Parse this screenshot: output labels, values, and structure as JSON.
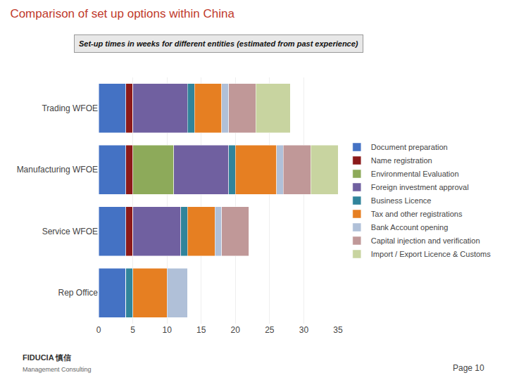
{
  "chart_data": {
    "type": "bar",
    "orientation": "horizontal",
    "stacked": true,
    "title": "Comparison of set up options within China",
    "subtitle": "Set-up times in weeks for different entities (estimated from past experience)",
    "annotations": [
      "Page 10",
      "FIDUCIA 慎信",
      "Management Consulting"
    ],
    "categories": [
      "Trading WFOE",
      "Manufacturing WFOE",
      "Service WFOE",
      "Rep Office"
    ],
    "series": [
      {
        "name": "Document preparation",
        "color": "#4472C4",
        "values": [
          4,
          4,
          4,
          4
        ]
      },
      {
        "name": "Name registration",
        "color": "#8B1A1A",
        "values": [
          1,
          1,
          1,
          0
        ]
      },
      {
        "name": "Environmental Evaluation",
        "color": "#8DAA5A",
        "values": [
          0,
          6,
          0,
          0
        ]
      },
      {
        "name": "Foreign investment approval",
        "color": "#7060A0",
        "values": [
          8,
          8,
          7,
          0
        ]
      },
      {
        "name": "Business Licence",
        "color": "#31849B",
        "values": [
          1,
          1,
          1,
          1
        ]
      },
      {
        "name": "Tax and other registrations",
        "color": "#E67F22",
        "values": [
          4,
          6,
          4,
          5
        ]
      },
      {
        "name": "Bank Account opening",
        "color": "#B0C0D8",
        "values": [
          1,
          1,
          1,
          3
        ]
      },
      {
        "name": "Capital injection and verification",
        "color": "#C09898",
        "values": [
          4,
          4,
          4,
          0
        ]
      },
      {
        "name": "Import / Export Licence & Customs",
        "color": "#C8D4A0",
        "values": [
          5,
          4,
          0,
          0
        ]
      }
    ],
    "xlim": [
      0,
      35
    ],
    "xticks": [
      0,
      5,
      10,
      15,
      20,
      25,
      30,
      35
    ],
    "grid": true,
    "legend": "right"
  }
}
